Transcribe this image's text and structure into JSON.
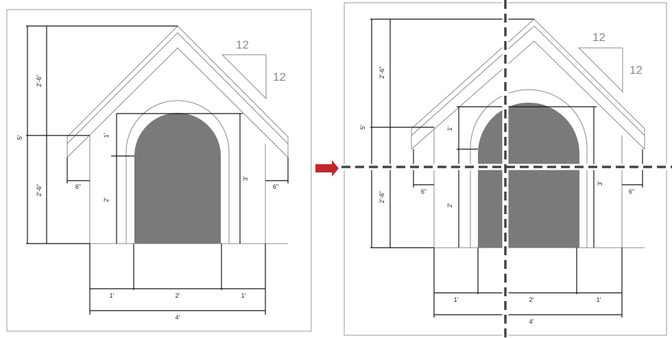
{
  "left_panel": {
    "slope": {
      "run": "12",
      "rise": "12"
    },
    "dims": {
      "total_height": "5'",
      "upper_height": "2'-6\"",
      "lower_height": "2'-6\"",
      "arch_top": "1'",
      "door_height": "2'",
      "opening_height": "3'",
      "eave_left": "6\"",
      "eave_right": "6\"",
      "side_left": "1'",
      "door_width": "2'",
      "side_right": "1'",
      "total_width": "4'"
    }
  },
  "right_panel": {
    "slope": {
      "run": "12",
      "rise": "12"
    },
    "dims": {
      "total_height": "5'",
      "upper_height": "2'-6\"",
      "lower_height": "2'-6\"",
      "arch_top": "1'",
      "door_height": "2'",
      "opening_height": "3'",
      "eave_left": "6\"",
      "eave_right": "6\"",
      "side_left": "1'",
      "door_width": "2'",
      "side_right": "1'",
      "total_width": "4'"
    }
  },
  "colors": {
    "arrow": "#c0272d",
    "door_fill": "#7a7a7a",
    "cut_line": "#444444"
  }
}
